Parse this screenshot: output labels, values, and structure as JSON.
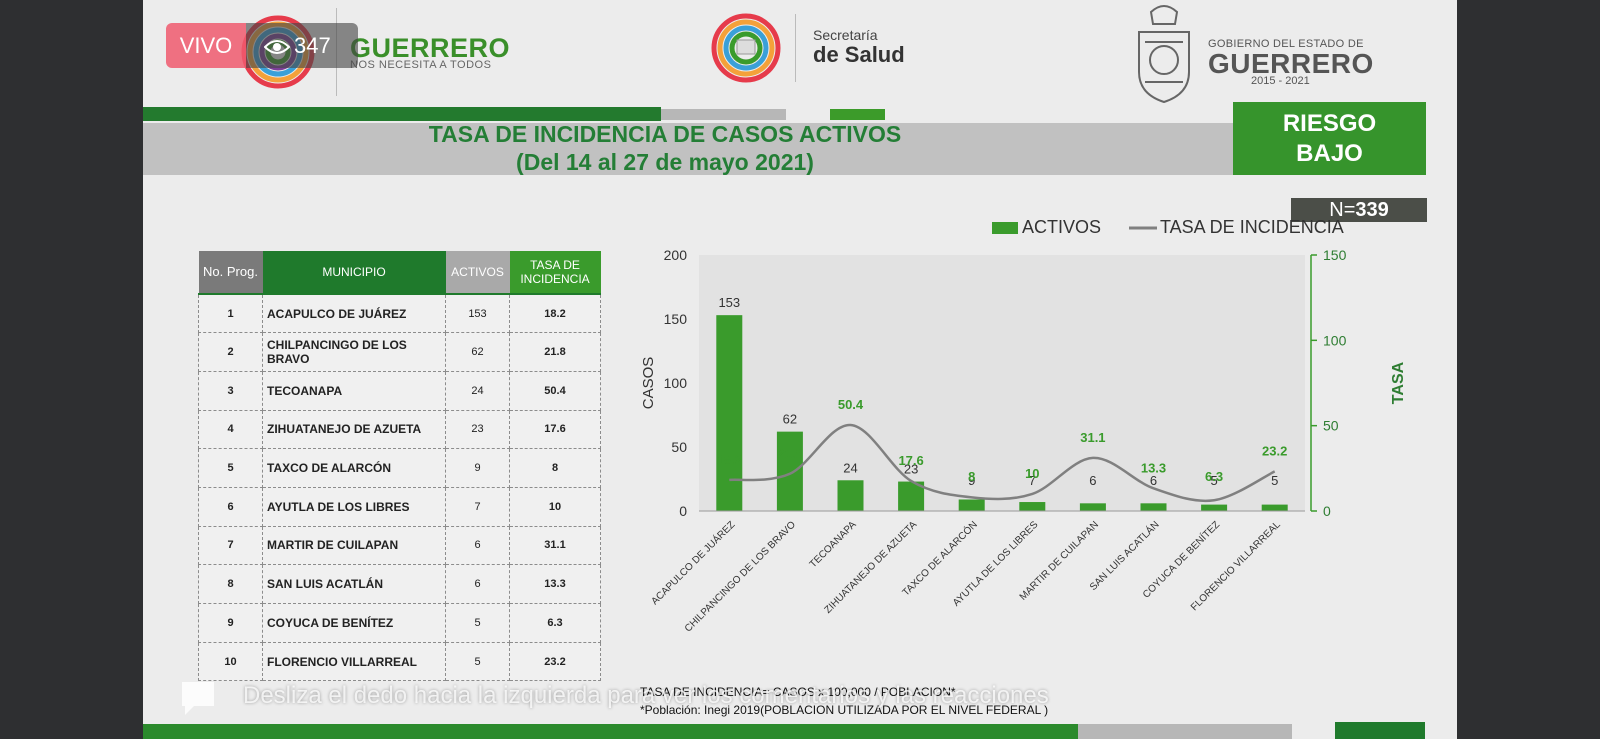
{
  "header": {
    "brand_name": "GUERRERO",
    "brand_tagline": "NOS NECESITA A TODOS",
    "salud_small": "Secretaría",
    "salud_big": "de Salud",
    "gob_small": "GOBIERNO DEL ESTADO DE",
    "gob_big": "GUERRERO",
    "gob_years": "2015 - 2021"
  },
  "title": {
    "line1": "TASA DE INCIDENCIA DE CASOS ACTIVOS",
    "line2": "(Del 14 al 27 de mayo 2021)"
  },
  "risk": {
    "line1": "RIESGO",
    "line2": "BAJO"
  },
  "n_badge": {
    "prefix": "N=",
    "value": "339"
  },
  "table": {
    "headers": [
      "No. Prog.",
      "MUNICIPIO",
      "ACTIVOS",
      "TASA DE INCIDENCIA"
    ],
    "rows": [
      {
        "no": "1",
        "municipio": "ACAPULCO DE JUÁREZ",
        "activos": "153",
        "tasa": "18.2"
      },
      {
        "no": "2",
        "municipio": "CHILPANCINGO DE LOS BRAVO",
        "activos": "62",
        "tasa": "21.8"
      },
      {
        "no": "3",
        "municipio": "TECOANAPA",
        "activos": "24",
        "tasa": "50.4"
      },
      {
        "no": "4",
        "municipio": "ZIHUATANEJO DE AZUETA",
        "activos": "23",
        "tasa": "17.6"
      },
      {
        "no": "5",
        "municipio": "TAXCO DE ALARCÓN",
        "activos": "9",
        "tasa": "8"
      },
      {
        "no": "6",
        "municipio": "AYUTLA DE LOS LIBRES",
        "activos": "7",
        "tasa": "10"
      },
      {
        "no": "7",
        "municipio": "MARTIR DE CUILAPAN",
        "activos": "6",
        "tasa": "31.1"
      },
      {
        "no": "8",
        "municipio": "SAN LUIS ACATLÁN",
        "activos": "6",
        "tasa": "13.3"
      },
      {
        "no": "9",
        "municipio": "COYUCA DE BENÍTEZ",
        "activos": "5",
        "tasa": "6.3"
      },
      {
        "no": "10",
        "municipio": "FLORENCIO VILLARREAL",
        "activos": "5",
        "tasa": "23.2"
      }
    ]
  },
  "chart_data": {
    "type": "bar",
    "legend": [
      "ACTIVOS",
      "TASA DE INCIDENCIA"
    ],
    "legend_position": "top",
    "categories": [
      "ACAPULCO DE JUÁREZ",
      "CHILPANCINGO DE LOS BRAVO",
      "TECOANAPA",
      "ZIHUATANEJO DE AZUETA",
      "TAXCO DE ALARCÓN",
      "AYUTLA DE LOS LIBRES",
      "MARTIR DE CUILAPAN",
      "SAN LUIS ACATLÁN",
      "COYUCA DE BENÍTEZ",
      "FLORENCIO VILLARREAL"
    ],
    "series": [
      {
        "name": "ACTIVOS",
        "type": "bar",
        "axis": "left",
        "color": "#3a9b2c",
        "values": [
          153,
          62,
          24,
          23,
          9,
          7,
          6,
          6,
          5,
          5
        ]
      },
      {
        "name": "TASA DE INCIDENCIA",
        "type": "line",
        "axis": "right",
        "color": "#808080",
        "values": [
          18.2,
          21.8,
          50.4,
          17.6,
          8,
          10,
          31.1,
          13.3,
          6.3,
          23.2
        ]
      }
    ],
    "ylabel_left": "CASOS",
    "ylabel_right": "TASA",
    "ylim_left": [
      0,
      200
    ],
    "ylim_right": [
      0,
      150
    ],
    "yticks_left": [
      "0",
      "50",
      "100",
      "150",
      "200"
    ],
    "yticks_right": [
      "0",
      "50",
      "100",
      "150"
    ]
  },
  "footnotes": {
    "formula": "TASA DE INCIDENCIA= CASOS x 100,000 / POBLACION*",
    "source": "*Población: Inegi 2019(POBLACION UTILIZADA POR EL NIVEL FEDERAL )"
  },
  "live": {
    "label": "VIVO",
    "viewers": "347",
    "swipe_hint": "Desliza el dedo hacia la izquierda para ver los comentarios y las reacciones"
  },
  "colors": {
    "green_dark": "#1f7a2c",
    "green": "#3a9b2c",
    "title_green": "#247e36",
    "gray_band": "#c1c1c1",
    "live_red": "#f05a6e"
  }
}
